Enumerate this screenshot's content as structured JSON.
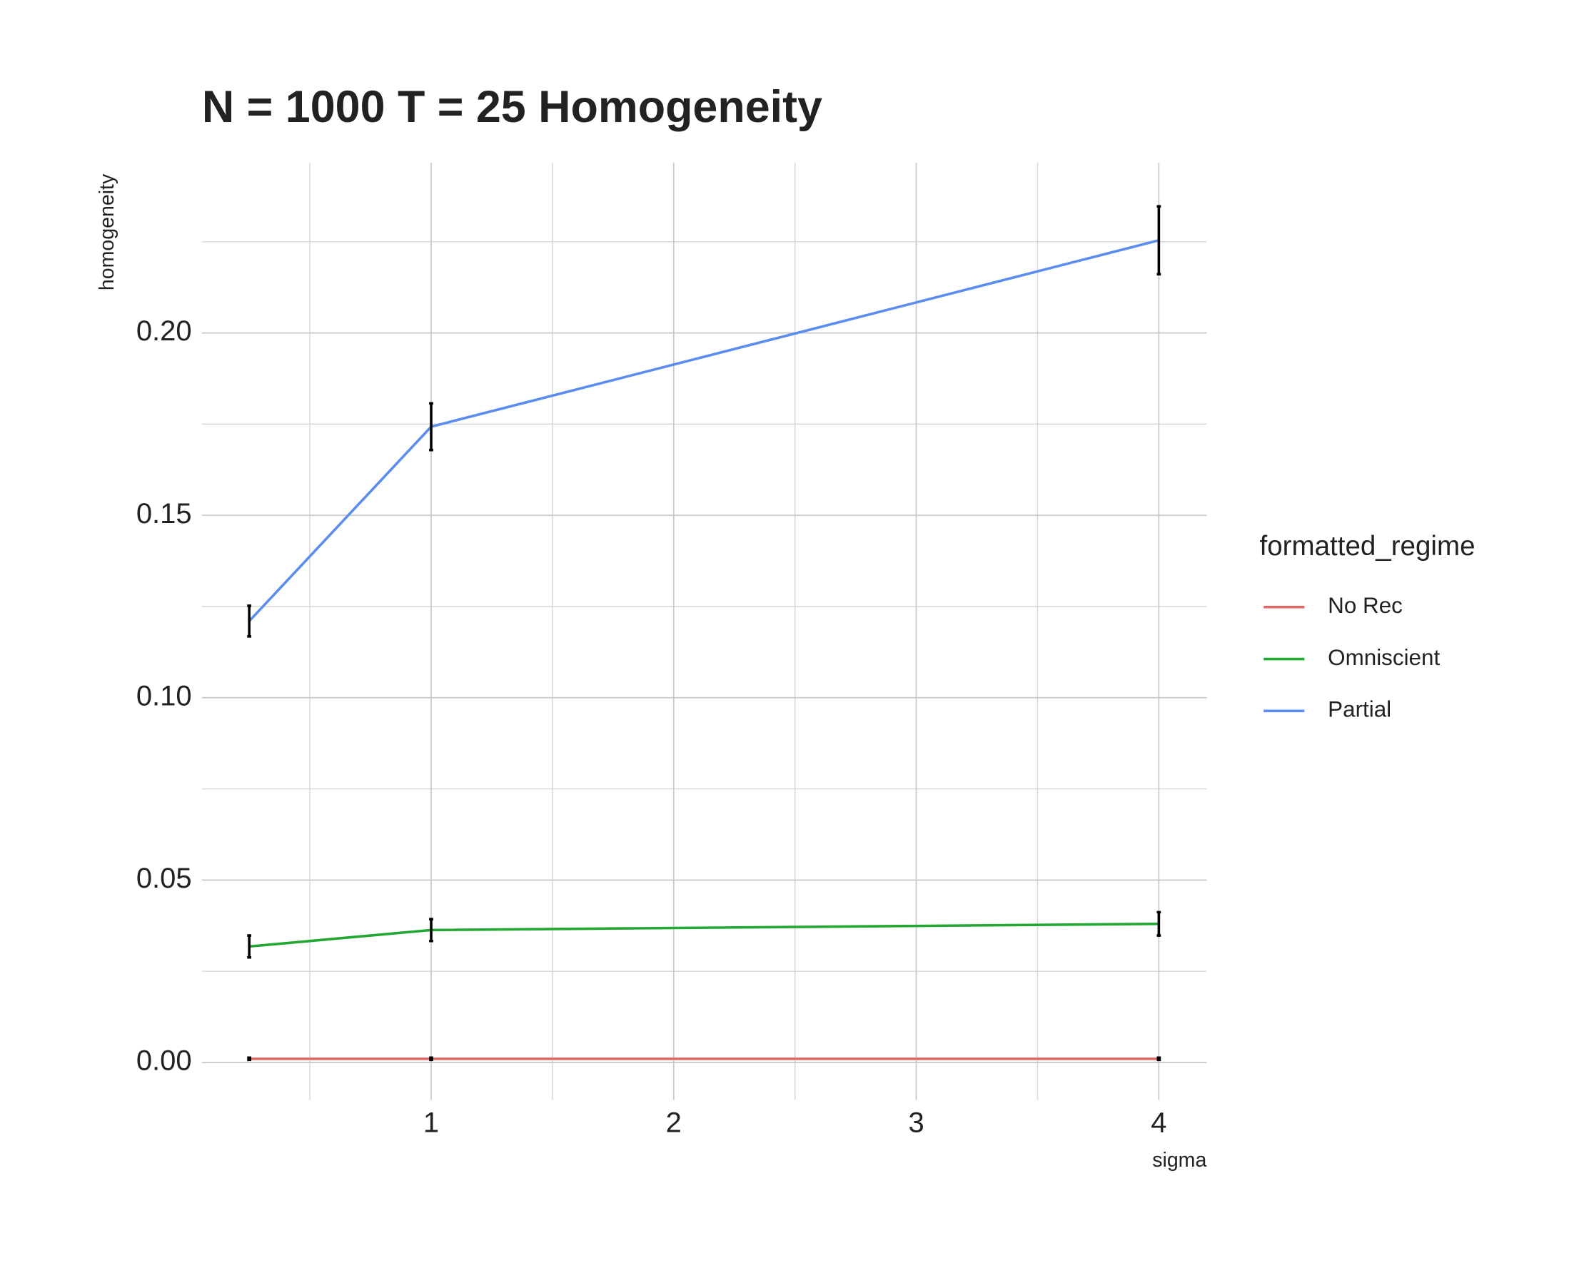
{
  "chart_data": {
    "type": "line",
    "title": "N = 1000 T = 25 Homogeneity",
    "x_label": "sigma",
    "y_label": "homogeneity",
    "legend_title": "formatted_regime",
    "legend_position": "right",
    "x": [
      0.25,
      1,
      4
    ],
    "series": [
      {
        "name": "No Rec",
        "color": "#e06666",
        "values": [
          0.001,
          0.001,
          0.001
        ],
        "errors": [
          0.0003,
          0.0003,
          0.0003
        ]
      },
      {
        "name": "Omniscient",
        "color": "#22a832",
        "values": [
          0.0318,
          0.0363,
          0.038
        ],
        "errors": [
          0.003,
          0.003,
          0.0032
        ]
      },
      {
        "name": "Partial",
        "color": "#5b8def",
        "values": [
          0.121,
          0.1743,
          0.2254
        ],
        "errors": [
          0.0042,
          0.0064,
          0.0093
        ]
      }
    ],
    "xlim": [
      0.055,
      4.197
    ],
    "xticks": [
      1,
      2,
      3,
      4
    ],
    "x_minor_ticks": [
      0.5,
      1.5,
      2.5,
      3.5
    ],
    "ylim": [
      -0.0103,
      0.2466
    ],
    "yticks": [
      {
        "value": 0,
        "label": "0.00"
      },
      0.05,
      {
        "value": 0.1,
        "label": "0.10"
      },
      0.15,
      {
        "value": 0.2,
        "label": "0.20"
      }
    ],
    "y_minor_ticks": [
      0.025,
      0.075,
      0.125,
      0.175,
      0.225
    ],
    "grid": true
  }
}
